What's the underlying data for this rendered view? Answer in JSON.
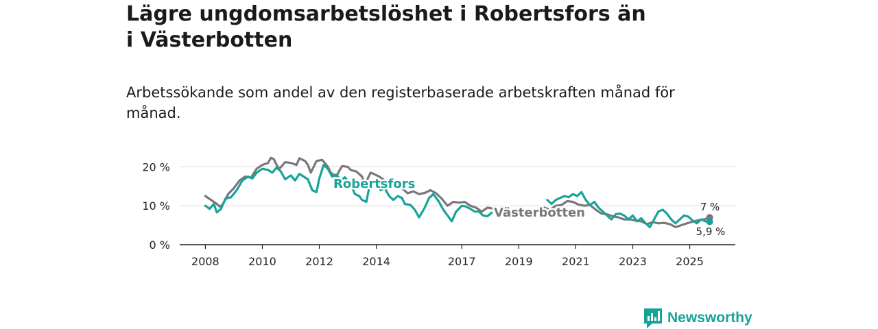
{
  "header": {
    "title": "Lägre ungdomsarbetslöshet i Robertsfors än i Västerbotten",
    "subtitle": "Arbetssökande som andel av den registerbaserade arbetskraften månad för månad."
  },
  "brand": {
    "name": "Newsworthy",
    "color": "#17a398"
  },
  "chart_data": {
    "type": "line",
    "x_ticks": [
      "2008",
      "2010",
      "2012",
      "2014",
      "2017",
      "2019",
      "2021",
      "2023",
      "2025"
    ],
    "x_tick_values": [
      2008,
      2010,
      2012,
      2014,
      2017,
      2019,
      2021,
      2023,
      2025
    ],
    "y_ticks": [
      {
        "value": 0,
        "label": "0 %"
      },
      {
        "value": 10,
        "label": "10 %"
      },
      {
        "value": 20,
        "label": "20 %"
      }
    ],
    "xlim": [
      2007.1,
      2026.6
    ],
    "ylim": [
      0,
      25
    ],
    "grid": true,
    "series": [
      {
        "name": "Västerbotten",
        "label": "Västerbotten",
        "color": "#7a767b",
        "end_label": "7 %",
        "end_value": 7,
        "points": [
          [
            2008.0,
            12.5
          ],
          [
            2008.2,
            11.5
          ],
          [
            2008.4,
            10.5
          ],
          [
            2008.5,
            9.8
          ],
          [
            2008.6,
            10.2
          ],
          [
            2008.8,
            13
          ],
          [
            2009.0,
            14.5
          ],
          [
            2009.2,
            16.5
          ],
          [
            2009.4,
            17.5
          ],
          [
            2009.6,
            17.2
          ],
          [
            2009.8,
            19.5
          ],
          [
            2010.0,
            20.5
          ],
          [
            2010.2,
            21.0
          ],
          [
            2010.3,
            22.3
          ],
          [
            2010.4,
            22
          ],
          [
            2010.5,
            20.5
          ],
          [
            2010.6,
            19.5
          ],
          [
            2010.8,
            21.2
          ],
          [
            2011.0,
            21
          ],
          [
            2011.2,
            20.5
          ],
          [
            2011.3,
            22.2
          ],
          [
            2011.5,
            21.5
          ],
          [
            2011.6,
            20.5
          ],
          [
            2011.7,
            18.5
          ],
          [
            2011.9,
            21.5
          ],
          [
            2012.1,
            21.8
          ],
          [
            2012.3,
            20
          ],
          [
            2012.4,
            18.5
          ],
          [
            2012.6,
            17.5
          ],
          [
            2012.7,
            19
          ],
          [
            2012.8,
            20.2
          ],
          [
            2013.0,
            20
          ],
          [
            2013.1,
            19.2
          ],
          [
            2013.3,
            18.8
          ],
          [
            2013.5,
            17.5
          ],
          [
            2013.6,
            15.5
          ],
          [
            2013.8,
            18.5
          ],
          [
            2013.9,
            18.2
          ],
          [
            2014.1,
            17.5
          ],
          [
            2014.3,
            16.5
          ],
          [
            2014.5,
            15.5
          ],
          [
            2014.7,
            15.2
          ],
          [
            2014.9,
            14.5
          ],
          [
            2015.1,
            13.2
          ],
          [
            2015.3,
            13.7
          ],
          [
            2015.5,
            13
          ],
          [
            2015.7,
            13.3
          ],
          [
            2015.9,
            14
          ],
          [
            2016.1,
            13.2
          ],
          [
            2016.3,
            11.8
          ],
          [
            2016.5,
            10
          ],
          [
            2016.7,
            11
          ],
          [
            2016.9,
            10.8
          ],
          [
            2017.1,
            11
          ],
          [
            2017.3,
            10
          ],
          [
            2017.5,
            9.5
          ],
          [
            2017.7,
            8.5
          ],
          [
            2017.9,
            9.5
          ],
          [
            2018.1,
            9.3
          ],
          [
            2019.9,
            9.5
          ],
          [
            2020.1,
            9
          ],
          [
            2020.3,
            10
          ],
          [
            2020.5,
            10.2
          ],
          [
            2020.7,
            11.2
          ],
          [
            2020.9,
            11
          ],
          [
            2021.1,
            10.3
          ],
          [
            2021.3,
            10
          ],
          [
            2021.5,
            10.2
          ],
          [
            2021.7,
            9
          ],
          [
            2021.9,
            8
          ],
          [
            2022.1,
            7.8
          ],
          [
            2022.3,
            7.3
          ],
          [
            2022.5,
            7
          ],
          [
            2022.7,
            6.5
          ],
          [
            2022.9,
            6.5
          ],
          [
            2023.1,
            6.2
          ],
          [
            2023.3,
            6
          ],
          [
            2023.5,
            5.3
          ],
          [
            2023.7,
            5.8
          ],
          [
            2023.9,
            5.5
          ],
          [
            2024.1,
            5.6
          ],
          [
            2024.3,
            5.3
          ],
          [
            2024.5,
            4.5
          ],
          [
            2024.7,
            5
          ],
          [
            2024.9,
            5.5
          ],
          [
            2025.1,
            5.9
          ],
          [
            2025.3,
            6.3
          ],
          [
            2025.5,
            6.5
          ],
          [
            2025.7,
            7
          ]
        ]
      },
      {
        "name": "Robertsfors",
        "label": "Robertsfors",
        "color": "#17a398",
        "end_label": "5,9 %",
        "end_value": 5.9,
        "points": [
          [
            2008.0,
            10
          ],
          [
            2008.15,
            9.2
          ],
          [
            2008.3,
            10.5
          ],
          [
            2008.4,
            8.3
          ],
          [
            2008.55,
            9.2
          ],
          [
            2008.7,
            11.8
          ],
          [
            2008.9,
            12.2
          ],
          [
            2009.1,
            14
          ],
          [
            2009.3,
            16.5
          ],
          [
            2009.5,
            17.5
          ],
          [
            2009.65,
            17
          ],
          [
            2009.8,
            18.5
          ],
          [
            2010.0,
            19.5
          ],
          [
            2010.2,
            19.2
          ],
          [
            2010.35,
            18.5
          ],
          [
            2010.5,
            19.8
          ],
          [
            2010.65,
            18.8
          ],
          [
            2010.8,
            16.8
          ],
          [
            2011.0,
            17.8
          ],
          [
            2011.15,
            16.5
          ],
          [
            2011.3,
            18.2
          ],
          [
            2011.45,
            17.5
          ],
          [
            2011.6,
            16.8
          ],
          [
            2011.75,
            14
          ],
          [
            2011.9,
            13.5
          ],
          [
            2012.0,
            17
          ],
          [
            2012.15,
            20.5
          ],
          [
            2012.3,
            19.5
          ],
          [
            2012.45,
            17.5
          ],
          [
            2012.6,
            18
          ],
          [
            2012.75,
            16.5
          ],
          [
            2012.9,
            17.3
          ],
          [
            2013.1,
            15.5
          ],
          [
            2013.25,
            13
          ],
          [
            2013.4,
            12.5
          ],
          [
            2013.5,
            11.5
          ],
          [
            2013.65,
            11
          ],
          [
            2013.8,
            16.5
          ],
          [
            2014.0,
            16
          ],
          [
            2014.15,
            14
          ],
          [
            2014.3,
            14.5
          ],
          [
            2014.45,
            12.5
          ],
          [
            2014.6,
            11.5
          ],
          [
            2014.75,
            12.5
          ],
          [
            2014.9,
            12
          ],
          [
            2015.0,
            10.5
          ],
          [
            2015.2,
            10.2
          ],
          [
            2015.35,
            9
          ],
          [
            2015.5,
            7
          ],
          [
            2015.7,
            9.5
          ],
          [
            2015.85,
            12
          ],
          [
            2016.0,
            13
          ],
          [
            2016.2,
            11
          ],
          [
            2016.35,
            9
          ],
          [
            2016.5,
            7.5
          ],
          [
            2016.65,
            6
          ],
          [
            2016.8,
            8.5
          ],
          [
            2017.0,
            10
          ],
          [
            2017.15,
            9.8
          ],
          [
            2017.3,
            9.2
          ],
          [
            2017.45,
            8.5
          ],
          [
            2017.6,
            8.5
          ],
          [
            2017.75,
            7.5
          ],
          [
            2017.9,
            7.3
          ],
          [
            2018.05,
            8.2
          ],
          [
            2020.0,
            11.5
          ],
          [
            2020.15,
            10.5
          ],
          [
            2020.3,
            11.5
          ],
          [
            2020.45,
            12
          ],
          [
            2020.6,
            12.5
          ],
          [
            2020.75,
            12.2
          ],
          [
            2020.9,
            13
          ],
          [
            2021.05,
            12.5
          ],
          [
            2021.2,
            13.5
          ],
          [
            2021.35,
            11.5
          ],
          [
            2021.5,
            10.2
          ],
          [
            2021.65,
            11
          ],
          [
            2021.8,
            9.5
          ],
          [
            2021.95,
            8.5
          ],
          [
            2022.1,
            7.5
          ],
          [
            2022.25,
            6.5
          ],
          [
            2022.4,
            7.8
          ],
          [
            2022.55,
            8
          ],
          [
            2022.7,
            7.5
          ],
          [
            2022.85,
            6.5
          ],
          [
            2023.0,
            7.5
          ],
          [
            2023.15,
            6
          ],
          [
            2023.3,
            6.8
          ],
          [
            2023.45,
            5.5
          ],
          [
            2023.6,
            4.5
          ],
          [
            2023.75,
            6.5
          ],
          [
            2023.9,
            8.5
          ],
          [
            2024.05,
            9
          ],
          [
            2024.2,
            8
          ],
          [
            2024.35,
            6.5
          ],
          [
            2024.5,
            5.5
          ],
          [
            2024.65,
            6.5
          ],
          [
            2024.8,
            7.5
          ],
          [
            2024.95,
            7.2
          ],
          [
            2025.1,
            6.2
          ],
          [
            2025.25,
            5.5
          ],
          [
            2025.4,
            6.5
          ],
          [
            2025.55,
            6
          ],
          [
            2025.7,
            5.9
          ]
        ]
      }
    ]
  }
}
